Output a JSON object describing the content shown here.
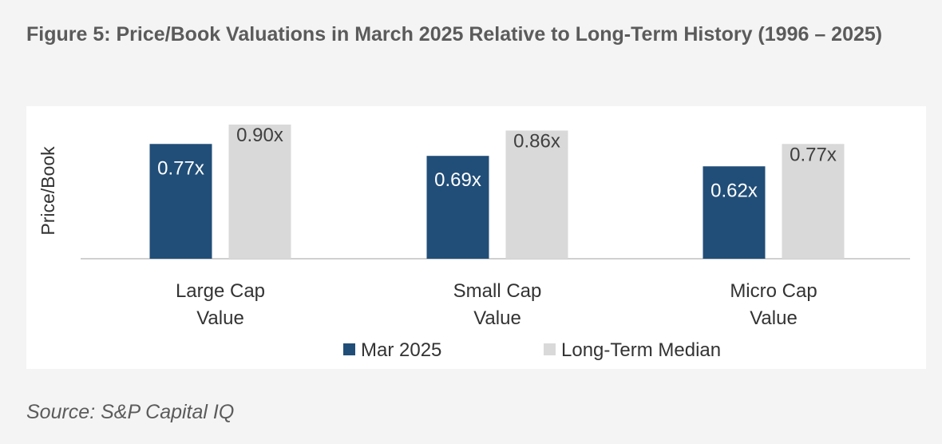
{
  "figure": {
    "title": "Figure 5: Price/Book Valuations in March 2025 Relative to Long-Term History (1996 – 2025)",
    "source": "Source: S&P Capital IQ"
  },
  "colors": {
    "mar_2025": "#214e78",
    "long_term_median": "#d9d9d9",
    "axis_line": "#d0d0d0",
    "label_dark": "#ffffff",
    "label_light": "#404040",
    "text": "#333333"
  },
  "chart_data": {
    "type": "bar",
    "title": "",
    "xlabel": "",
    "ylabel": "Price/Book",
    "ylim": [
      0,
      0.9
    ],
    "grid": false,
    "legend_position": "bottom",
    "categories": [
      [
        "Large Cap",
        "Value"
      ],
      [
        "Small Cap",
        "Value"
      ],
      [
        "Micro Cap",
        "Value"
      ]
    ],
    "series": [
      {
        "name": "Mar 2025",
        "values": [
          0.77,
          0.69,
          0.62
        ],
        "labels": [
          "0.77x",
          "0.69x",
          "0.62x"
        ]
      },
      {
        "name": "Long-Term Median",
        "values": [
          0.9,
          0.86,
          0.77
        ],
        "labels": [
          "0.90x",
          "0.86x",
          "0.77x"
        ]
      }
    ]
  }
}
